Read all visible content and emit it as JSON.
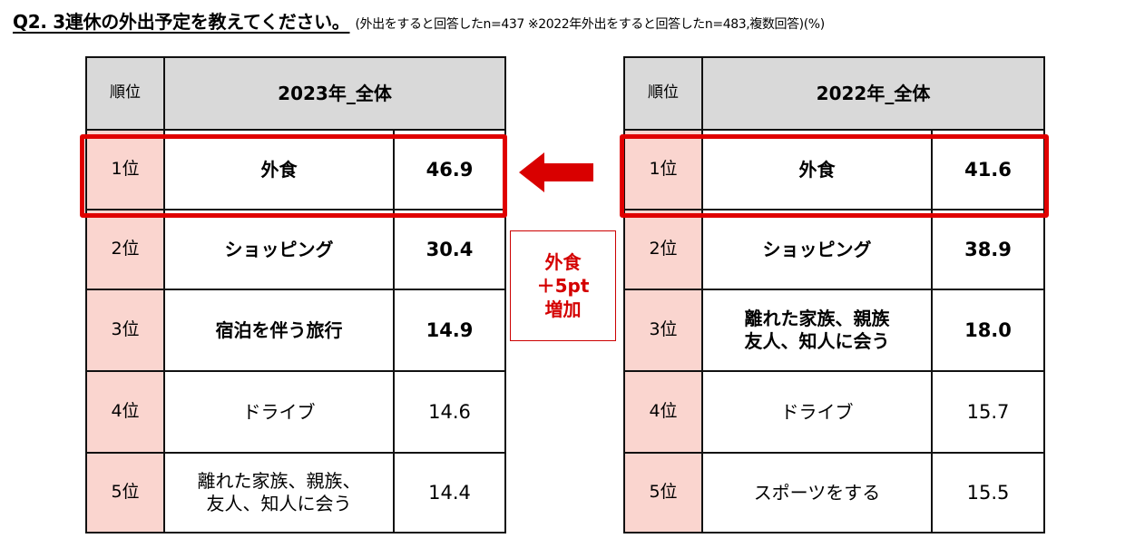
{
  "title": {
    "main": "Q2. 3連休の外出予定を教えてください。",
    "note": "(外出をすると回答したn=437 ※2022年外出をすると回答したn=483,複数回答)(%)"
  },
  "tables": {
    "y2023": {
      "rank_header": "順位",
      "header": "2023年_全体",
      "rows": [
        {
          "rank": "1位",
          "item": "外食",
          "value": "46.9",
          "bold": true
        },
        {
          "rank": "2位",
          "item": "ショッピング",
          "value": "30.4",
          "bold": true
        },
        {
          "rank": "3位",
          "item": "宿泊を伴う旅行",
          "value": "14.9",
          "bold": true
        },
        {
          "rank": "4位",
          "item": "ドライブ",
          "value": "14.6",
          "bold": false
        },
        {
          "rank": "5位",
          "item_line1": "離れた家族、親族、",
          "item_line2": "友人、知人に会う",
          "value": "14.4",
          "bold": false
        }
      ]
    },
    "y2022": {
      "rank_header": "順位",
      "header": "2022年_全体",
      "rows": [
        {
          "rank": "1位",
          "item": "外食",
          "value": "41.6",
          "bold": true
        },
        {
          "rank": "2位",
          "item": "ショッピング",
          "value": "38.9",
          "bold": true
        },
        {
          "rank": "3位",
          "item_line1": "離れた家族、親族",
          "item_line2": "友人、知人に会う",
          "value": "18.0",
          "bold": true
        },
        {
          "rank": "4位",
          "item": "ドライブ",
          "value": "15.7",
          "bold": false
        },
        {
          "rank": "5位",
          "item": "スポーツをする",
          "value": "15.5",
          "bold": false
        }
      ]
    }
  },
  "callout": {
    "line1": "外食",
    "line2": "＋5pt",
    "line3": "増加"
  },
  "colors": {
    "highlight": "#e00000",
    "rank_cell_bg": "#fad5cf",
    "header_bg": "#d9d9d9",
    "callout_text": "#d40000"
  },
  "icons": {
    "arrow": "left-arrow-icon"
  }
}
